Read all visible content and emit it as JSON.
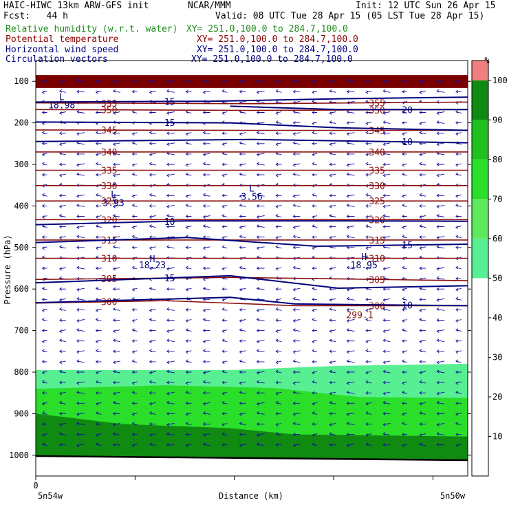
{
  "header": {
    "model": "HAIC-HIWC 13km ARW-GFS init",
    "org": "NCAR/MMM",
    "init": "Init: 12 UTC Sun 26 Apr 15",
    "fcst": "Fcst:   44 h",
    "valid": "Valid: 08 UTC Tue 28 Apr 15 (05 LST Tue 28 Apr 15)"
  },
  "fields": [
    {
      "name": "Relative humidity (w.r.t. water)",
      "xy": "XY= 251.0,100.0 to 284.7,100.0",
      "color": "#1c8c1c"
    },
    {
      "name": "Potential temperature",
      "xy": "XY= 251.0,100.0 to 284.7,100.0",
      "color": "#8b0000"
    },
    {
      "name": "Horizontal wind speed",
      "xy": "XY= 251.0,100.0 to 284.7,100.0",
      "color": "#000080"
    },
    {
      "name": "Circulation vectors",
      "xy": "XY= 251.0,100.0 to 284.7,100.0",
      "color": "#000080"
    }
  ],
  "chart_data": {
    "type": "cross-section",
    "xlabel": "Distance (km)",
    "ylabel": "Pressure (hPa)",
    "x_tick_zero": "0",
    "x_start_label": "5n54w",
    "x_end_label": "5n50w",
    "y_ticks": [
      100,
      200,
      300,
      400,
      500,
      600,
      700,
      800,
      900,
      1000
    ],
    "ylim": [
      50,
      1050
    ],
    "colorbar": {
      "unit": "%",
      "ticks": [
        10,
        20,
        30,
        40,
        50,
        60,
        70,
        80,
        90,
        100
      ],
      "bands": [
        {
          "from": 0,
          "to": 50,
          "color": "#ffffff"
        },
        {
          "from": 50,
          "to": 60,
          "color": "#58ee92"
        },
        {
          "from": 60,
          "to": 70,
          "color": "#5ee85e"
        },
        {
          "from": 70,
          "to": 80,
          "color": "#2ade2a"
        },
        {
          "from": 80,
          "to": 90,
          "color": "#20c020"
        },
        {
          "from": 90,
          "to": 100,
          "color": "#108a10"
        },
        {
          "from": 100,
          "to": 105,
          "color": "#f08080"
        }
      ]
    },
    "rh_regions": [
      {
        "name": "upper-saturated",
        "color": "#7a0000",
        "top": [
          [
            0,
            85
          ],
          [
            1,
            85
          ]
        ],
        "bottom": [
          [
            0,
            116
          ],
          [
            1,
            116
          ]
        ]
      },
      {
        "name": "rh-50",
        "color": "#58ee92",
        "top": [
          [
            0,
            795
          ],
          [
            0.45,
            795
          ],
          [
            0.7,
            785
          ],
          [
            1,
            780
          ]
        ],
        "bottom": [
          [
            0,
            1002
          ],
          [
            1,
            1012
          ]
        ]
      },
      {
        "name": "rh-70",
        "color": "#2ade2a",
        "top": [
          [
            0,
            840
          ],
          [
            0.3,
            832
          ],
          [
            0.55,
            838
          ],
          [
            0.75,
            860
          ],
          [
            1,
            862
          ]
        ],
        "bottom": [
          [
            0,
            1002
          ],
          [
            1,
            1012
          ]
        ]
      },
      {
        "name": "rh-90",
        "color": "#108a10",
        "top": [
          [
            0,
            900
          ],
          [
            0.2,
            925
          ],
          [
            0.45,
            935
          ],
          [
            0.6,
            950
          ],
          [
            1,
            955
          ]
        ],
        "bottom": [
          [
            0,
            1002
          ],
          [
            1,
            1012
          ]
        ]
      }
    ],
    "theta_contours": [
      {
        "value": 355,
        "label": "355",
        "pts": [
          [
            0,
            152
          ],
          [
            0.5,
            154
          ],
          [
            1,
            150
          ]
        ]
      },
      {
        "value": 350,
        "label": "350",
        "pts": [
          [
            0,
            168
          ],
          [
            0.5,
            170
          ],
          [
            1,
            168
          ]
        ]
      },
      {
        "value": 345,
        "label": "345",
        "pts": [
          [
            0,
            217
          ],
          [
            0.5,
            218
          ],
          [
            1,
            218
          ]
        ]
      },
      {
        "value": 340,
        "label": "340",
        "pts": [
          [
            0,
            270
          ],
          [
            1,
            270
          ]
        ]
      },
      {
        "value": 335,
        "label": "335",
        "pts": [
          [
            0,
            314
          ],
          [
            1,
            314
          ]
        ]
      },
      {
        "value": 330,
        "label": "330",
        "pts": [
          [
            0,
            351
          ],
          [
            1,
            351
          ]
        ]
      },
      {
        "value": 325,
        "label": "325",
        "pts": [
          [
            0,
            388
          ],
          [
            1,
            388
          ]
        ]
      },
      {
        "value": 320,
        "label": "320",
        "pts": [
          [
            0,
            433
          ],
          [
            1,
            433
          ]
        ]
      },
      {
        "value": 315,
        "label": "315",
        "pts": [
          [
            0,
            482
          ],
          [
            1,
            482
          ]
        ]
      },
      {
        "value": 310,
        "label": "310",
        "pts": [
          [
            0,
            526
          ],
          [
            1,
            526
          ]
        ]
      },
      {
        "value": 305,
        "label": "305",
        "pts": [
          [
            0,
            577
          ],
          [
            0.45,
            572
          ],
          [
            1,
            580
          ]
        ]
      },
      {
        "value": 300,
        "label": "300",
        "pts": [
          [
            0,
            634
          ],
          [
            0.3,
            628
          ],
          [
            0.6,
            640
          ],
          [
            1,
            640
          ]
        ]
      }
    ],
    "wind_contours": [
      {
        "value": 15,
        "label": "15",
        "pts": [
          [
            0,
            150
          ],
          [
            0.4,
            148
          ],
          [
            0.7,
            142
          ],
          [
            1,
            138
          ]
        ]
      },
      {
        "value": 20,
        "label": "20",
        "pts": [
          [
            0.45,
            160
          ],
          [
            0.7,
            168
          ],
          [
            1,
            168
          ]
        ]
      },
      {
        "value": 15,
        "label": "15",
        "pts": [
          [
            0,
            198
          ],
          [
            0.45,
            200
          ],
          [
            0.7,
            212
          ],
          [
            1,
            218
          ]
        ]
      },
      {
        "value": 10,
        "label": "10",
        "pts": [
          [
            0,
            245
          ],
          [
            0.5,
            240
          ],
          [
            1,
            248
          ]
        ]
      },
      {
        "value": 10,
        "label": "10",
        "pts": [
          [
            0,
            445
          ],
          [
            0.35,
            436
          ],
          [
            0.7,
            436
          ],
          [
            1,
            437
          ]
        ]
      },
      {
        "value": 15,
        "label": "15",
        "pts": [
          [
            0,
            488
          ],
          [
            0.35,
            476
          ],
          [
            0.65,
            497
          ],
          [
            1,
            492
          ]
        ]
      },
      {
        "value": 15,
        "label": "15",
        "pts": [
          [
            0,
            585
          ],
          [
            0.45,
            568
          ],
          [
            0.7,
            598
          ],
          [
            1,
            592
          ]
        ]
      },
      {
        "value": 10,
        "label": "10",
        "pts": [
          [
            0,
            633
          ],
          [
            0.45,
            620
          ],
          [
            0.6,
            636
          ],
          [
            1,
            640
          ]
        ]
      }
    ],
    "annotations": [
      {
        "text": "L",
        "x": 0.06,
        "p": 145
      },
      {
        "text": "18.98",
        "x": 0.06,
        "p": 165
      },
      {
        "text": "L",
        "x": 0.18,
        "p": 380
      },
      {
        "text": "3.93",
        "x": 0.18,
        "p": 400
      },
      {
        "text": "L",
        "x": 0.5,
        "p": 365
      },
      {
        "text": "3.56",
        "x": 0.5,
        "p": 385
      },
      {
        "text": "H",
        "x": 0.27,
        "p": 535
      },
      {
        "text": "18.23",
        "x": 0.27,
        "p": 550
      },
      {
        "text": "H",
        "x": 0.76,
        "p": 530
      },
      {
        "text": "18.95",
        "x": 0.76,
        "p": 550
      },
      {
        "text": "299.1",
        "x": 0.75,
        "p": 670
      }
    ],
    "wind_vectors": {
      "u_dominant": "easterly",
      "rows_hpa_step": 25
    }
  }
}
